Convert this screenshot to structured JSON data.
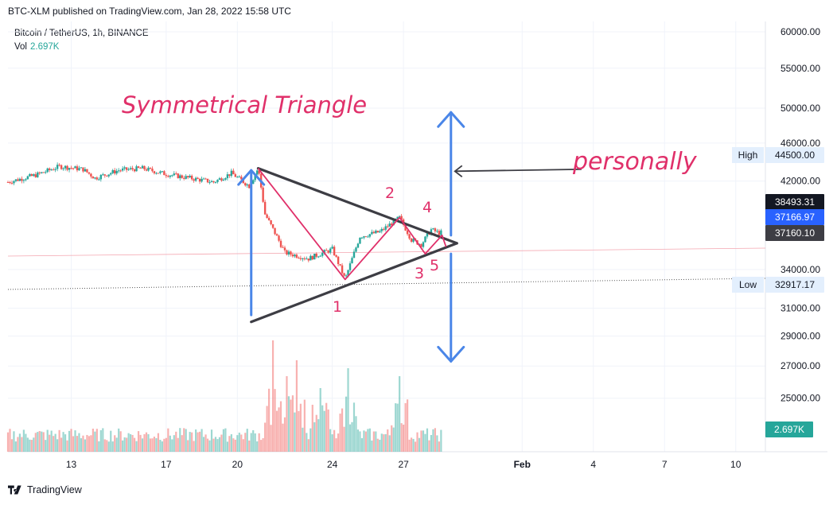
{
  "header": {
    "published": "BTC-XLM published on TradingView.com, Jan 28, 2022 15:58 UTC"
  },
  "legend": {
    "symbol": "Bitcoin / TetherUS, 1h, BINANCE",
    "vol_label": "Vol",
    "vol_value": "2.697K"
  },
  "footer": {
    "brand": "TradingView"
  },
  "colors": {
    "up": "#26a69a",
    "down": "#ef5350",
    "pattern_line": "#3d3d44",
    "wave_line": "#e0306a",
    "arrow": "#4a86e8",
    "grid": "#f0f3fa"
  },
  "chart_data": {
    "type": "candlestick",
    "price_scale": "log",
    "ylim": [
      22000,
      61500
    ],
    "yticks": [
      "60000.00",
      "55000.00",
      "50000.00",
      "46000.00",
      "42000.00",
      "34000.00",
      "31000.00",
      "29000.00",
      "27000.00",
      "25000.00"
    ],
    "ytick_values": [
      60000,
      55000,
      50000,
      46000,
      42000,
      34000,
      31000,
      29000,
      27000,
      25000
    ],
    "xticks": [
      {
        "label": "13",
        "date": "2022-01-13"
      },
      {
        "label": "17",
        "date": "2022-01-17"
      },
      {
        "label": "20",
        "date": "2022-01-20"
      },
      {
        "label": "24",
        "date": "2022-01-24"
      },
      {
        "label": "27",
        "date": "2022-01-27"
      },
      {
        "label": "Feb",
        "date": "2022-02-01"
      },
      {
        "label": "4",
        "date": "2022-02-04"
      },
      {
        "label": "7",
        "date": "2022-02-07"
      },
      {
        "label": "10",
        "date": "2022-02-10"
      }
    ],
    "x_range": [
      "2022-01-10 08:00",
      "2022-02-11 06:00"
    ],
    "price_path": [
      [
        "2022-01-10 08:00",
        41900
      ],
      [
        "2022-01-11 12:00",
        42600
      ],
      [
        "2022-01-12 12:00",
        43500
      ],
      [
        "2022-01-13 12:00",
        43200
      ],
      [
        "2022-01-14 00:00",
        42300
      ],
      [
        "2022-01-15 00:00",
        43100
      ],
      [
        "2022-01-16 00:00",
        43300
      ],
      [
        "2022-01-17 00:00",
        42700
      ],
      [
        "2022-01-18 00:00",
        42300
      ],
      [
        "2022-01-19 00:00",
        41900
      ],
      [
        "2022-01-19 18:00",
        42800
      ],
      [
        "2022-01-20 12:00",
        41500
      ],
      [
        "2022-01-20 21:00",
        43300
      ],
      [
        "2022-01-21 04:00",
        38800
      ],
      [
        "2022-01-22 00:00",
        35400
      ],
      [
        "2022-01-23 00:00",
        34900
      ],
      [
        "2022-01-24 00:00",
        35700
      ],
      [
        "2022-01-24 13:00",
        33200
      ],
      [
        "2022-01-25 04:00",
        36800
      ],
      [
        "2022-01-26 00:00",
        37200
      ],
      [
        "2022-01-26 20:00",
        38500
      ],
      [
        "2022-01-27 08:00",
        36500
      ],
      [
        "2022-01-27 18:00",
        36100
      ],
      [
        "2022-01-28 04:00",
        37400
      ],
      [
        "2022-01-28 12:00",
        37100
      ],
      [
        "2022-01-28 15:00",
        37166
      ]
    ],
    "volume": {
      "last_value": "2.697K",
      "spikes": [
        [
          "2022-01-21 12:00",
          2.8
        ],
        [
          "2022-01-22 12:00",
          2.3
        ],
        [
          "2022-01-22 02:00",
          1.9
        ],
        [
          "2022-01-24 16:00",
          2.1
        ],
        [
          "2022-01-26 20:00",
          1.9
        ],
        [
          "2022-01-23 12:00",
          1.6
        ]
      ]
    },
    "price_labels": [
      {
        "label": "",
        "value": "38493.31",
        "bg": "#131722",
        "fg": "#ffffff"
      },
      {
        "label": "",
        "value": "37166.97",
        "bg": "#2962ff",
        "fg": "#ffffff"
      },
      {
        "label": "",
        "value": "37160.10",
        "bg": "#3d3d44",
        "fg": "#ffffff"
      },
      {
        "label": "High",
        "value": "44500.00",
        "bg": "#e3effd",
        "fg": "#131722"
      },
      {
        "label": "Low",
        "value": "32917.17",
        "bg": "#e3effd",
        "fg": "#131722"
      }
    ],
    "low_line": 32917.17,
    "annotations": {
      "title": "Symmetrical Triangle",
      "note": "personally",
      "wave_labels": [
        "1",
        "2",
        "3",
        "4",
        "5"
      ],
      "triangle_upper": [
        [
          "2022-01-20 21:00",
          43300
        ],
        [
          "2022-01-29 06:00",
          36200
        ]
      ],
      "triangle_lower": [
        [
          "2022-01-20 14:00",
          30000
        ],
        [
          "2022-01-29 06:00",
          36200
        ]
      ],
      "waves": [
        [
          "2022-01-20 21:00",
          43300
        ],
        [
          "2022-01-24 13:00",
          33200
        ],
        [
          "2022-01-26 20:00",
          38500
        ],
        [
          "2022-01-27 22:00",
          35300
        ],
        [
          "2022-01-28 15:00",
          36900
        ],
        [
          "2022-01-28 19:00",
          35900
        ]
      ],
      "pole_up": [
        [
          "2022-01-20 14:00",
          30500
        ],
        [
          "2022-01-20 14:00",
          43100
        ]
      ],
      "breakout_up": [
        [
          "2022-01-29 00:00",
          36900
        ],
        [
          "2022-01-29 00:00",
          49500
        ]
      ],
      "breakout_down": [
        [
          "2022-01-29 00:00",
          35300
        ],
        [
          "2022-01-29 00:00",
          27300
        ]
      ],
      "note_arrow": [
        [
          "2022-02-03 12:00",
          43200
        ],
        [
          "2022-01-29 04:00",
          43000
        ]
      ]
    }
  }
}
